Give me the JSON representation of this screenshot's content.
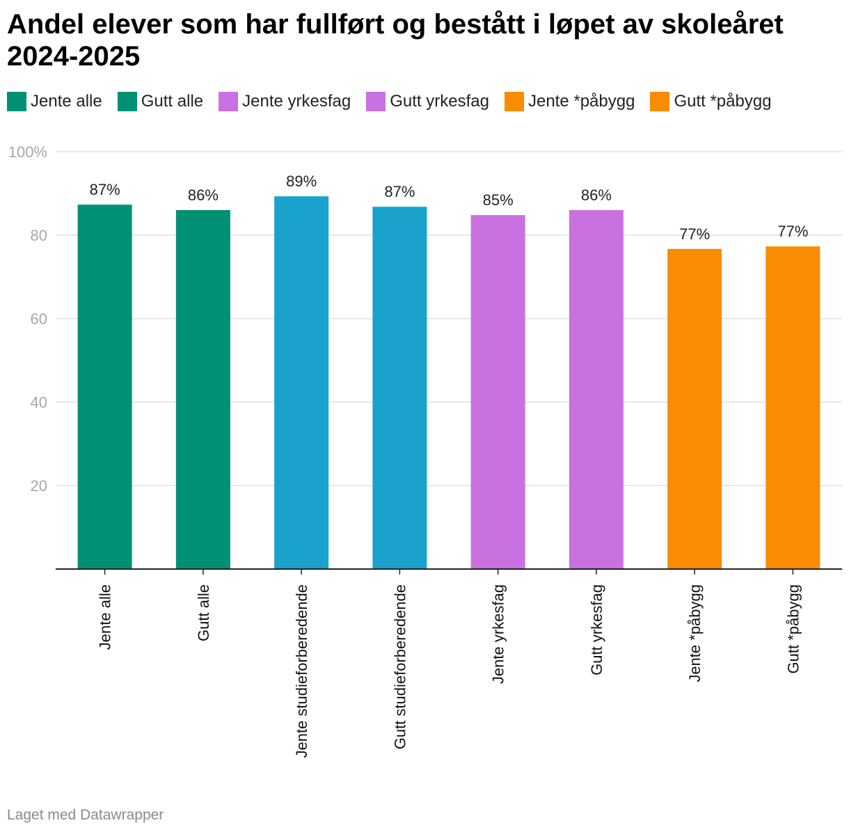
{
  "header": {
    "title": "Andel elever som har fullført og bestått i løpet av skoleåret 2024-2025"
  },
  "legend": [
    {
      "label": "Jente alle",
      "color": "#009174"
    },
    {
      "label": "Gutt alle",
      "color": "#009174"
    },
    {
      "label": "Jente yrkesfag",
      "color": "#c971e1"
    },
    {
      "label": "Gutt yrkesfag",
      "color": "#c971e1"
    },
    {
      "label": "Jente *påbygg",
      "color": "#f98c00"
    },
    {
      "label": "Gutt *påbygg",
      "color": "#f98c00"
    }
  ],
  "chart_data": {
    "type": "bar",
    "title": "Andel elever som har fullført og bestått i løpet av skoleåret 2024-2025",
    "xlabel": "",
    "ylabel": "",
    "ylim": [
      0,
      100
    ],
    "yticks": [
      20,
      40,
      60,
      80,
      100
    ],
    "ytick_labels": [
      "20",
      "40",
      "60",
      "80",
      "100%"
    ],
    "grid": true,
    "categories": [
      "Jente alle",
      "Gutt alle",
      "Jente studieforberedende",
      "Gutt studieforberedende",
      "Jente yrkesfag",
      "Gutt yrkesfag",
      "Jente *påbygg",
      "Gutt *påbygg"
    ],
    "values": [
      87.3,
      86.0,
      89.3,
      86.8,
      84.8,
      86.0,
      76.7,
      77.3
    ],
    "value_labels": [
      "87%",
      "86%",
      "89%",
      "87%",
      "85%",
      "86%",
      "77%",
      "77%"
    ],
    "colors": [
      "#009174",
      "#009174",
      "#1aa2cc",
      "#1aa2cc",
      "#c971e1",
      "#c971e1",
      "#f98c00",
      "#f98c00"
    ]
  },
  "footer": {
    "credit": "Laget med Datawrapper"
  }
}
